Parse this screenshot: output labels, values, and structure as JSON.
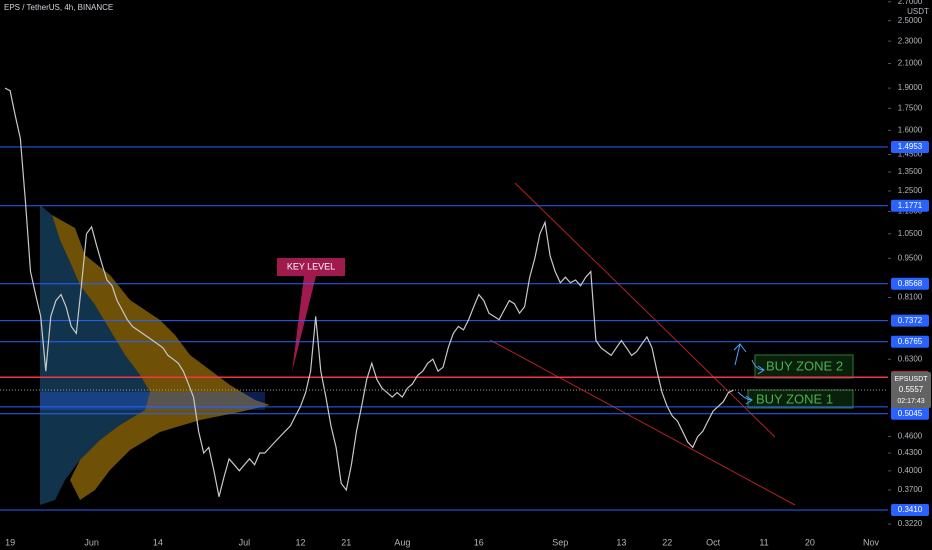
{
  "chart_data": {
    "type": "line",
    "title": "EPS / TetherUS, 4h, BINANCE",
    "log_scale": true,
    "ylim": [
      0.308,
      2.72
    ],
    "y_unit": "USDT",
    "categories": [
      null,
      "19",
      null,
      null,
      null,
      null,
      null,
      null,
      null,
      null,
      null,
      null,
      null,
      null,
      null,
      null,
      null,
      "Jun",
      null,
      null,
      null,
      null,
      null,
      null,
      null,
      null,
      null,
      null,
      null,
      null,
      "14",
      null,
      null,
      null,
      null,
      null,
      null,
      null,
      null,
      null,
      null,
      null,
      null,
      null,
      null,
      null,
      null,
      "Jul",
      null,
      null,
      null,
      null,
      null,
      null,
      null,
      null,
      null,
      null,
      "12",
      null,
      null,
      null,
      null,
      null,
      null,
      null,
      null,
      "21",
      null,
      null,
      null,
      null,
      null,
      null,
      null,
      null,
      null,
      null,
      "Aug",
      null,
      null,
      null,
      null,
      null,
      null,
      null,
      null,
      null,
      null,
      null,
      null,
      null,
      null,
      "16",
      null,
      null,
      null,
      null,
      null,
      null,
      null,
      null,
      null,
      null,
      null,
      null,
      null,
      null,
      null,
      "Sep",
      null,
      null,
      null,
      null,
      null,
      null,
      null,
      null,
      null,
      null,
      null,
      "13",
      null,
      null,
      null,
      null,
      null,
      null,
      null,
      null,
      "22",
      null,
      null,
      null,
      null,
      null,
      null,
      null,
      null,
      "Oct",
      null,
      null,
      null,
      null,
      null,
      null,
      null,
      null,
      null,
      "11",
      null,
      null,
      null,
      null,
      null,
      null,
      null,
      null,
      "20",
      null,
      null,
      null,
      null,
      null,
      null,
      null,
      null,
      null,
      null,
      null,
      "Nov"
    ],
    "series": [
      {
        "name": "EPSUSDT",
        "color": "#c8c8c8",
        "values": [
          1.9,
          1.88,
          1.7,
          1.55,
          1.2,
          0.9,
          0.82,
          0.75,
          0.6,
          0.75,
          0.8,
          0.82,
          0.78,
          0.72,
          0.7,
          0.85,
          1.05,
          1.08,
          1.0,
          0.93,
          0.87,
          0.85,
          0.8,
          0.77,
          0.74,
          0.72,
          0.71,
          0.7,
          0.69,
          0.68,
          0.67,
          0.66,
          0.64,
          0.63,
          0.62,
          0.6,
          0.57,
          0.54,
          0.47,
          0.43,
          0.44,
          0.4,
          0.36,
          0.39,
          0.42,
          0.41,
          0.4,
          0.41,
          0.42,
          0.41,
          0.43,
          0.43,
          0.44,
          0.45,
          0.46,
          0.47,
          0.48,
          0.5,
          0.52,
          0.55,
          0.6,
          0.75,
          0.6,
          0.54,
          0.48,
          0.44,
          0.38,
          0.37,
          0.41,
          0.47,
          0.52,
          0.58,
          0.62,
          0.58,
          0.56,
          0.55,
          0.54,
          0.55,
          0.54,
          0.56,
          0.57,
          0.59,
          0.6,
          0.62,
          0.63,
          0.6,
          0.61,
          0.66,
          0.7,
          0.72,
          0.71,
          0.74,
          0.78,
          0.82,
          0.8,
          0.76,
          0.75,
          0.74,
          0.77,
          0.8,
          0.79,
          0.76,
          0.78,
          0.88,
          0.95,
          1.05,
          1.1,
          0.96,
          0.9,
          0.86,
          0.88,
          0.86,
          0.87,
          0.85,
          0.88,
          0.9,
          0.68,
          0.66,
          0.65,
          0.64,
          0.66,
          0.68,
          0.66,
          0.64,
          0.65,
          0.67,
          0.69,
          0.66,
          0.6,
          0.55,
          0.52,
          0.5,
          0.49,
          0.47,
          0.45,
          0.44,
          0.46,
          0.47,
          0.49,
          0.51,
          0.52,
          0.53,
          0.55,
          0.5557,
          null,
          null,
          null,
          null,
          null,
          null,
          null,
          null,
          null,
          null,
          null,
          null,
          null,
          null,
          null,
          null,
          null,
          null,
          null,
          null,
          null,
          null,
          null,
          null,
          null,
          null,
          null
        ]
      }
    ],
    "yticks": [
      {
        "value": 2.7,
        "label": "2.7000"
      },
      {
        "value": 2.5,
        "label": "2.5000"
      },
      {
        "value": 2.3,
        "label": "2.3000"
      },
      {
        "value": 2.1,
        "label": "2.1000"
      },
      {
        "value": 1.9,
        "label": "1.9000"
      },
      {
        "value": 1.75,
        "label": "1.7500"
      },
      {
        "value": 1.6,
        "label": "1.6000"
      },
      {
        "value": 1.45,
        "label": "1.4500"
      },
      {
        "value": 1.35,
        "label": "1.3500"
      },
      {
        "value": 1.25,
        "label": "1.2500"
      },
      {
        "value": 1.15,
        "label": "1.1500"
      },
      {
        "value": 1.05,
        "label": "1.0500"
      },
      {
        "value": 0.95,
        "label": "0.9500"
      },
      {
        "value": 0.81,
        "label": "0.8100"
      },
      {
        "value": 0.63,
        "label": "0.6300"
      },
      {
        "value": 0.46,
        "label": "0.4600"
      },
      {
        "value": 0.43,
        "label": "0.4300"
      },
      {
        "value": 0.4,
        "label": "0.4000"
      },
      {
        "value": 0.37,
        "label": "0.3700"
      },
      {
        "value": 0.322,
        "label": "0.3220"
      }
    ],
    "levels": [
      {
        "value": 1.4953,
        "label": "1.4953",
        "color": "#2962ff"
      },
      {
        "value": 1.1771,
        "label": "1.1771",
        "color": "#2962ff"
      },
      {
        "value": 0.8568,
        "label": "0.8568",
        "color": "#2962ff"
      },
      {
        "value": 0.7372,
        "label": "0.7372",
        "color": "#2962ff"
      },
      {
        "value": 0.6765,
        "label": "0.6765",
        "color": "#2962ff"
      },
      {
        "value": 0.5855,
        "label": "0.5855",
        "color": "#f23645"
      },
      {
        "value": 0.519,
        "label": "0.5190",
        "color": "#2962ff"
      },
      {
        "value": 0.5045,
        "label": "0.5045",
        "color": "#2962ff"
      },
      {
        "value": 0.341,
        "label": "0.3410",
        "color": "#2962ff"
      }
    ],
    "last_price": 0.5557,
    "countdown": "02:17:43",
    "annotations": [
      "KEY LEVEL",
      "BUY ZONE 2",
      "BUY ZONE 1"
    ]
  }
}
